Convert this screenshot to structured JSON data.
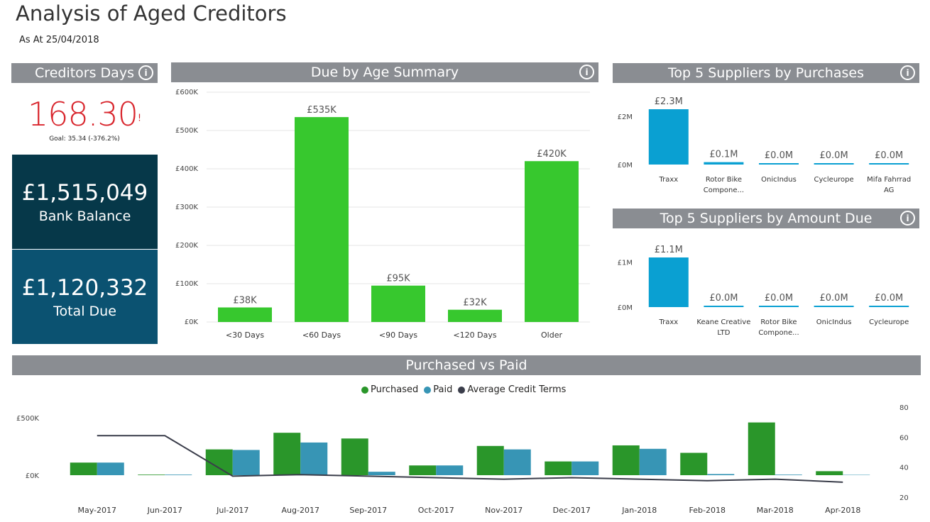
{
  "title": "Analysis of Aged Creditors",
  "subtitle": "As At 25/04/2018",
  "info_icon_glyph": "i",
  "creditors_days": {
    "header": "Creditors Days",
    "value": "168.30",
    "alert": "!",
    "goal": "Goal: 35.34 (-376.2%)"
  },
  "bank": {
    "value": "£1,515,049",
    "label": "Bank Balance"
  },
  "total_due": {
    "value": "£1,120,332",
    "label": "Total Due"
  },
  "colors": {
    "header_bg": "#8a8d92",
    "kpi_red": "#d9272e",
    "bank_bg": "#063849",
    "due_bg": "#0b5271",
    "green_bar": "#37c82e",
    "blue_bar": "#0aa0d2",
    "purchased": "#2a962a",
    "paid": "#3795b5",
    "avg_line": "#3a3d4a"
  },
  "chart_data": [
    {
      "type": "bar",
      "title": "Due by Age Summary",
      "categories": [
        "<30 Days",
        "<60 Days",
        "<90 Days",
        "<120 Days",
        "Older"
      ],
      "values": [
        38000,
        535000,
        95000,
        32000,
        420000
      ],
      "data_labels": [
        "£38K",
        "£535K",
        "£95K",
        "£32K",
        "£420K"
      ],
      "y_ticks": [
        0,
        100000,
        200000,
        300000,
        400000,
        500000,
        600000
      ],
      "y_tick_labels": [
        "£0K",
        "£100K",
        "£200K",
        "£300K",
        "£400K",
        "£500K",
        "£600K"
      ],
      "ylim": [
        0,
        600000
      ],
      "grid": true
    },
    {
      "type": "bar",
      "title": "Top 5 Suppliers by Purchases",
      "categories": [
        "Traxx",
        "Rotor Bike Compone...",
        "OnicIndus",
        "Cycleurope",
        "Mifa Fahrrad AG"
      ],
      "values": [
        2.3,
        0.1,
        0.0,
        0.0,
        0.0
      ],
      "data_labels": [
        "£2.3M",
        "£0.1M",
        "£0.0M",
        "£0.0M",
        "£0.0M"
      ],
      "y_ticks": [
        0,
        2
      ],
      "y_tick_labels": [
        "£0M",
        "£2M"
      ],
      "ylim": [
        0,
        2.3
      ]
    },
    {
      "type": "bar",
      "title": "Top 5 Suppliers by Amount Due",
      "categories": [
        "Traxx",
        "Keane Creative LTD",
        "Rotor Bike Compone...",
        "OnicIndus",
        "Cycleurope"
      ],
      "values": [
        1.1,
        0.0,
        0.0,
        0.0,
        0.0
      ],
      "data_labels": [
        "£1.1M",
        "£0.0M",
        "£0.0M",
        "£0.0M",
        "£0.0M"
      ],
      "y_ticks": [
        0,
        1
      ],
      "y_tick_labels": [
        "£0M",
        "£1M"
      ],
      "ylim": [
        0,
        1.1
      ]
    },
    {
      "type": "bar",
      "title": "Purchased vs Paid",
      "categories": [
        "May-2017",
        "Jun-2017",
        "Jul-2017",
        "Aug-2017",
        "Sep-2017",
        "Oct-2017",
        "Nov-2017",
        "Dec-2017",
        "Jan-2018",
        "Feb-2018",
        "Mar-2018",
        "Apr-2018"
      ],
      "series": [
        {
          "name": "Purchased",
          "values": [
            110000,
            5000,
            225000,
            370000,
            320000,
            85000,
            255000,
            120000,
            260000,
            195000,
            460000,
            35000
          ]
        },
        {
          "name": "Paid",
          "values": [
            110000,
            5000,
            220000,
            285000,
            30000,
            85000,
            225000,
            120000,
            230000,
            10000,
            5000,
            3000
          ]
        },
        {
          "name": "Average Credit Terms",
          "type": "line",
          "axis": "secondary",
          "values": [
            61,
            61,
            34,
            35,
            34,
            33,
            32,
            33,
            32,
            31,
            32,
            30
          ]
        }
      ],
      "y_ticks": [
        0,
        500000
      ],
      "y_tick_labels": [
        "£0K",
        "£500K"
      ],
      "ylim": [
        0,
        600000
      ],
      "y2_ticks": [
        20,
        40,
        60,
        80
      ],
      "y2lim": [
        20,
        80
      ],
      "legend": "top-center"
    }
  ]
}
